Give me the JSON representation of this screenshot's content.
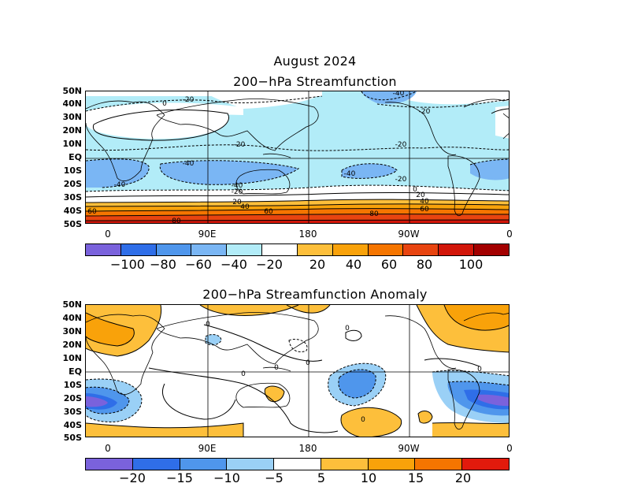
{
  "header": {
    "date_title": "August 2024",
    "top_title": "200−hPa Streamfunction",
    "bottom_title": "200−hPa Streamfunction Anomaly"
  },
  "axes": {
    "lat_labels": [
      "50N",
      "40N",
      "30N",
      "20N",
      "10N",
      "EQ",
      "10S",
      "20S",
      "30S",
      "40S",
      "50S"
    ],
    "lon_labels": [
      "0",
      "90E",
      "180",
      "90W",
      "0"
    ]
  },
  "top_map": {
    "contour_labels": [
      "-40",
      "0",
      "-20",
      "-20",
      "-20",
      "-40",
      "-40",
      "-20",
      "-40",
      "-20",
      "-40",
      "-20",
      "0",
      "20",
      "20",
      "40",
      "40",
      "60",
      "60",
      "60",
      "80",
      "80"
    ],
    "colorbar": {
      "labels": [
        "−100",
        "−80",
        "−60",
        "−40",
        "−20",
        "20",
        "40",
        "60",
        "80",
        "100"
      ],
      "colors": [
        "#7a62dc",
        "#2f6ee8",
        "#4f96ec",
        "#7ab6f4",
        "#b2ecf8",
        "#ffffff",
        "#fdbf3b",
        "#f9a20a",
        "#f57500",
        "#e84410",
        "#d2160a",
        "#a30000"
      ]
    }
  },
  "bottom_map": {
    "contour_labels": [
      "0",
      "0",
      "0",
      "0",
      "0",
      "0",
      "0"
    ],
    "colorbar": {
      "labels": [
        "−20",
        "−15",
        "−10",
        "−5",
        "5",
        "10",
        "15",
        "20"
      ],
      "colors": [
        "#7a62dc",
        "#2f6ee8",
        "#4f96ec",
        "#9ad0f6",
        "#ffffff",
        "#fdbf3b",
        "#f9a20a",
        "#f57500",
        "#e21a0c"
      ]
    }
  }
}
